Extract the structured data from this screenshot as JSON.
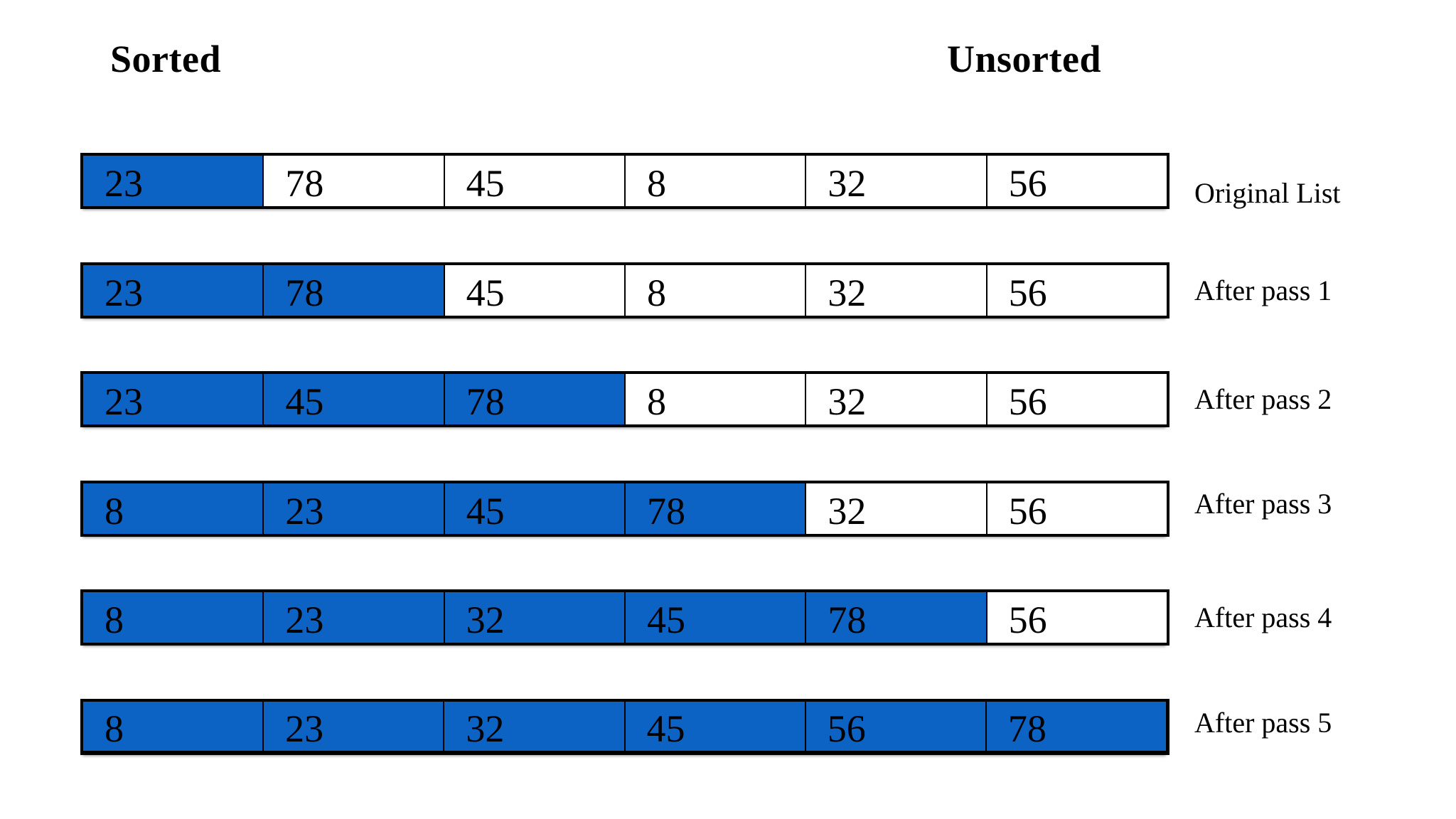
{
  "diagram": {
    "description": "Insertion sort passes over a six element list",
    "headers": {
      "sorted": "Sorted",
      "unsorted": "Unsorted"
    },
    "rows": [
      {
        "label": "Original List",
        "values": [
          "23",
          "78",
          "45",
          "8",
          "32",
          "56"
        ],
        "sorted_count": 1
      },
      {
        "label": "After pass 1",
        "values": [
          "23",
          "78",
          "45",
          "8",
          "32",
          "56"
        ],
        "sorted_count": 2
      },
      {
        "label": "After pass 2",
        "values": [
          "23",
          "45",
          "78",
          "8",
          "32",
          "56"
        ],
        "sorted_count": 3
      },
      {
        "label": "After pass 3",
        "values": [
          "8",
          "23",
          "45",
          "78",
          "32",
          "56"
        ],
        "sorted_count": 4
      },
      {
        "label": "After pass 4",
        "values": [
          "8",
          "23",
          "32",
          "45",
          "78",
          "56"
        ],
        "sorted_count": 5
      },
      {
        "label": "After pass 5",
        "values": [
          "8",
          "23",
          "32",
          "45",
          "56",
          "78"
        ],
        "sorted_count": 6
      }
    ],
    "colors": {
      "sorted_fill": "#0c63c4",
      "unsorted_fill": "#ffffff",
      "border": "#000000",
      "text": "#000000"
    }
  }
}
